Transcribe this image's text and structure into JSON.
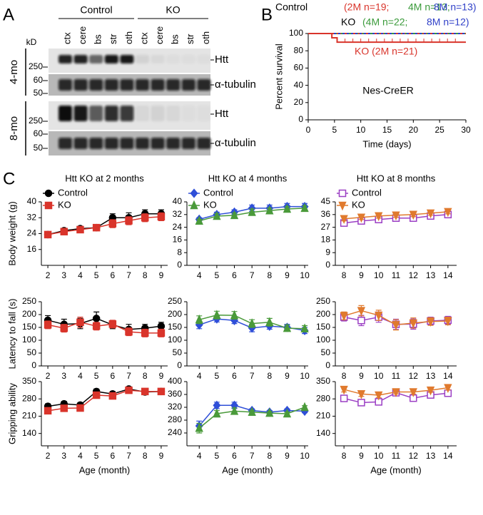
{
  "panel_labels": [
    "A",
    "B",
    "C"
  ],
  "blot": {
    "groups": [
      "Control",
      "KO"
    ],
    "lanes": [
      "ctx",
      "cere",
      "bs",
      "str",
      "oth",
      "ctx",
      "cere",
      "bs",
      "str",
      "oth"
    ],
    "unit": "kD",
    "rows": [
      {
        "label": "4-mo",
        "bands": [
          {
            "label": "Htt",
            "markers": [
              "250"
            ]
          },
          {
            "label": "α-tubulin",
            "markers": [
              "60",
              "50"
            ]
          }
        ]
      },
      {
        "label": "8-mo",
        "bands": [
          {
            "label": "Htt",
            "markers": [
              "250"
            ]
          },
          {
            "label": "α-tubulin",
            "markers": [
              "60",
              "50"
            ]
          }
        ]
      }
    ]
  },
  "chart_data": [
    {
      "type": "line",
      "xlabel": "Time (days)",
      "ylabel": "Percent survival",
      "xlim": [
        0,
        30
      ],
      "xticks": [
        0,
        5,
        10,
        15,
        20,
        25,
        30
      ],
      "ylim": [
        0,
        100
      ],
      "yticks": [
        0,
        20,
        40,
        60,
        80,
        100
      ],
      "annotations": [
        {
          "text": "Control",
          "color": "#000000"
        },
        {
          "text": "(2M n=19;",
          "color": "#d9342b"
        },
        {
          "text": "4M n=13;",
          "color": "#3a9a3a"
        },
        {
          "text": "8M n=13)",
          "color": "#3040c8"
        },
        {
          "text": "KO",
          "color": "#000000"
        },
        {
          "text": "(4M n=22;",
          "color": "#3a9a3a"
        },
        {
          "text": "8M n=12)",
          "color": "#3040c8"
        },
        {
          "text": "KO  (2M n=21)",
          "color": "#d9342b"
        },
        {
          "text": "Nes-CreER",
          "color": "#000000"
        }
      ],
      "series": [
        {
          "color": "#3a9a3a",
          "x": [
            0,
            30
          ],
          "values": [
            100,
            100
          ]
        },
        {
          "color": "#d9342b",
          "x": [
            0,
            30
          ],
          "values": [
            100,
            100
          ]
        },
        {
          "color": "#3040c8",
          "x": [
            0,
            30
          ],
          "values": [
            100,
            100
          ]
        },
        {
          "color": "#d9342b",
          "x": [
            0,
            4.5,
            4.5,
            5.5,
            5.5,
            30
          ],
          "values": [
            100,
            100,
            95,
            95,
            90,
            90
          ]
        }
      ]
    },
    {
      "type": "line",
      "title": "Htt KO at 2 months",
      "ylabel": "Body weight (g)",
      "legend": "upper left",
      "x": [
        2,
        3,
        4,
        5,
        6,
        7,
        8,
        9
      ],
      "xlim": [
        1.6,
        9.4
      ],
      "xticks": [
        2,
        3,
        4,
        5,
        6,
        7,
        8,
        9
      ],
      "ylim": [
        8,
        40
      ],
      "yticks": [
        16,
        24,
        32,
        40
      ],
      "series": [
        {
          "name": "Control",
          "color": "#000000",
          "marker": "circle",
          "filled": true,
          "values": [
            23.5,
            25.5,
            26.5,
            27,
            32,
            32,
            34,
            34
          ],
          "errors": [
            0.8,
            0.8,
            1,
            1.2,
            2,
            2.5,
            2,
            2
          ]
        },
        {
          "name": "KO",
          "color": "#d9342b",
          "marker": "square",
          "filled": true,
          "values": [
            23.5,
            25,
            26,
            27,
            29,
            30.5,
            32,
            32.5
          ],
          "errors": [
            0.8,
            0.8,
            1,
            1,
            2,
            2,
            2,
            2
          ]
        }
      ]
    },
    {
      "type": "line",
      "title": "Htt KO at 4 months",
      "legend": "upper left",
      "x": [
        4,
        5,
        6,
        7,
        8,
        9,
        10
      ],
      "xlim": [
        3.3,
        10.2
      ],
      "xticks": [
        4,
        5,
        6,
        7,
        8,
        9,
        10
      ],
      "ylim": [
        0,
        40
      ],
      "yticks": [
        0,
        8,
        16,
        24,
        32,
        40
      ],
      "series": [
        {
          "name": "Control",
          "color": "#2f4fd8",
          "marker": "diamond",
          "filled": true,
          "values": [
            29,
            32,
            33.5,
            36,
            36,
            37,
            37
          ],
          "errors": [
            1,
            1.5,
            1.5,
            2,
            2,
            2,
            2
          ]
        },
        {
          "name": "KO",
          "color": "#4a9a3a",
          "marker": "triangle-up",
          "filled": true,
          "values": [
            28,
            31,
            31.5,
            33.5,
            34.5,
            35.5,
            36
          ],
          "errors": [
            1,
            1.5,
            1.5,
            2,
            1.5,
            1.5,
            1.5
          ]
        }
      ]
    },
    {
      "type": "line",
      "title": "Htt KO at 8 months",
      "legend": "upper left",
      "x": [
        8,
        9,
        10,
        11,
        12,
        13,
        14
      ],
      "xlim": [
        7.5,
        14.5
      ],
      "xticks": [
        8,
        9,
        10,
        11,
        12,
        13,
        14
      ],
      "ylim": [
        0,
        45
      ],
      "yticks": [
        0,
        9,
        18,
        27,
        36,
        45
      ],
      "series": [
        {
          "name": "Control",
          "color": "#9b3fc4",
          "marker": "square",
          "filled": false,
          "values": [
            30,
            31.5,
            32.5,
            33.5,
            33.5,
            35,
            36
          ],
          "errors": [
            1.5,
            1.5,
            1.5,
            1.5,
            1.5,
            1.5,
            1.5
          ]
        },
        {
          "name": "KO",
          "color": "#e07a2e",
          "marker": "triangle-down",
          "filled": true,
          "values": [
            33,
            34,
            35,
            35.5,
            36,
            37,
            38
          ],
          "errors": [
            1.5,
            1.5,
            1.5,
            1.5,
            1.5,
            1.5,
            1.5
          ]
        }
      ]
    },
    {
      "type": "line",
      "ylabel": "Latency to fall (s)",
      "x": [
        2,
        3,
        4,
        5,
        6,
        7,
        8,
        9
      ],
      "xlim": [
        1.6,
        9.4
      ],
      "xticks": [
        2,
        3,
        4,
        5,
        6,
        7,
        8,
        9
      ],
      "ylim": [
        0,
        250
      ],
      "yticks": [
        0,
        50,
        100,
        150,
        200,
        250
      ],
      "series": [
        {
          "color": "#000000",
          "marker": "circle",
          "filled": true,
          "values": [
            178,
            162,
            165,
            185,
            160,
            142,
            147,
            155
          ],
          "errors": [
            18,
            20,
            20,
            25,
            15,
            20,
            15,
            15
          ]
        },
        {
          "color": "#d9342b",
          "marker": "square",
          "filled": true,
          "values": [
            160,
            147,
            170,
            155,
            163,
            133,
            128,
            128
          ],
          "errors": [
            15,
            15,
            20,
            15,
            15,
            15,
            15,
            15
          ]
        }
      ]
    },
    {
      "type": "line",
      "x": [
        4,
        5,
        6,
        7,
        8,
        9,
        10
      ],
      "xlim": [
        3.3,
        10.2
      ],
      "xticks": [
        4,
        5,
        6,
        7,
        8,
        9,
        10
      ],
      "ylim": [
        0,
        250
      ],
      "yticks": [
        0,
        50,
        100,
        150,
        200,
        250
      ],
      "series": [
        {
          "color": "#2f4fd8",
          "marker": "diamond",
          "filled": true,
          "values": [
            160,
            183,
            177,
            148,
            155,
            150,
            138
          ],
          "errors": [
            15,
            12,
            12,
            15,
            12,
            12,
            12
          ]
        },
        {
          "color": "#4a9a3a",
          "marker": "triangle-up",
          "filled": true,
          "values": [
            180,
            198,
            197,
            165,
            170,
            147,
            145
          ],
          "errors": [
            15,
            15,
            15,
            15,
            15,
            12,
            12
          ]
        }
      ]
    },
    {
      "type": "line",
      "x": [
        8,
        9,
        10,
        11,
        12,
        13,
        14
      ],
      "xlim": [
        7.5,
        14.5
      ],
      "xticks": [
        8,
        9,
        10,
        11,
        12,
        13,
        14
      ],
      "ylim": [
        0,
        250
      ],
      "yticks": [
        0,
        50,
        100,
        150,
        200,
        250
      ],
      "series": [
        {
          "color": "#9b3fc4",
          "marker": "square",
          "filled": false,
          "values": [
            190,
            177,
            190,
            162,
            163,
            175,
            178
          ],
          "errors": [
            15,
            20,
            20,
            20,
            20,
            15,
            15
          ]
        },
        {
          "color": "#e07a2e",
          "marker": "triangle-down",
          "filled": true,
          "values": [
            195,
            215,
            197,
            160,
            167,
            173,
            175
          ],
          "errors": [
            15,
            20,
            20,
            20,
            20,
            15,
            15
          ]
        }
      ]
    },
    {
      "type": "line",
      "ylabel": "Gripping ability",
      "xlabel": "Age (month)",
      "x": [
        2,
        3,
        4,
        5,
        6,
        7,
        8,
        9
      ],
      "xlim": [
        1.6,
        9.4
      ],
      "xticks": [
        2,
        3,
        4,
        5,
        6,
        7,
        8,
        9
      ],
      "ylim": [
        90,
        350
      ],
      "yticks": [
        140,
        210,
        280,
        350
      ],
      "series": [
        {
          "color": "#000000",
          "marker": "circle",
          "filled": true,
          "values": [
            250,
            260,
            255,
            310,
            300,
            320,
            308,
            310
          ],
          "errors": [
            10,
            10,
            10,
            10,
            10,
            5,
            8,
            8
          ]
        },
        {
          "color": "#d9342b",
          "marker": "square",
          "filled": true,
          "values": [
            232,
            242,
            243,
            295,
            292,
            315,
            310,
            310
          ],
          "errors": [
            10,
            10,
            10,
            10,
            10,
            8,
            8,
            8
          ]
        }
      ]
    },
    {
      "type": "line",
      "xlabel": "Age (month)",
      "x": [
        4,
        5,
        6,
        7,
        8,
        9,
        10
      ],
      "xlim": [
        3.3,
        10.2
      ],
      "xticks": [
        4,
        5,
        6,
        7,
        8,
        9,
        10
      ],
      "ylim": [
        200,
        400
      ],
      "yticks": [
        240,
        280,
        320,
        360,
        400
      ],
      "series": [
        {
          "color": "#2f4fd8",
          "marker": "diamond",
          "filled": true,
          "values": [
            262,
            326,
            326,
            310,
            305,
            310,
            308
          ],
          "errors": [
            15,
            10,
            10,
            5,
            5,
            5,
            5
          ]
        },
        {
          "color": "#4a9a3a",
          "marker": "triangle-up",
          "filled": true,
          "values": [
            255,
            300,
            308,
            305,
            302,
            300,
            320
          ],
          "errors": [
            15,
            10,
            10,
            5,
            5,
            5,
            5
          ]
        }
      ]
    },
    {
      "type": "line",
      "xlabel": "Age (month)",
      "x": [
        8,
        9,
        10,
        11,
        12,
        13,
        14
      ],
      "xlim": [
        7.5,
        14.5
      ],
      "xticks": [
        8,
        9,
        10,
        11,
        12,
        13,
        14
      ],
      "ylim": [
        90,
        350
      ],
      "yticks": [
        140,
        210,
        280,
        350
      ],
      "series": [
        {
          "color": "#9b3fc4",
          "marker": "square",
          "filled": false,
          "values": [
            282,
            265,
            268,
            305,
            283,
            296,
            303
          ],
          "errors": [
            10,
            10,
            10,
            8,
            8,
            8,
            8
          ]
        },
        {
          "color": "#e07a2e",
          "marker": "triangle-down",
          "filled": true,
          "values": [
            318,
            300,
            295,
            308,
            308,
            315,
            325
          ],
          "errors": [
            10,
            10,
            10,
            8,
            8,
            8,
            8
          ]
        }
      ]
    }
  ]
}
